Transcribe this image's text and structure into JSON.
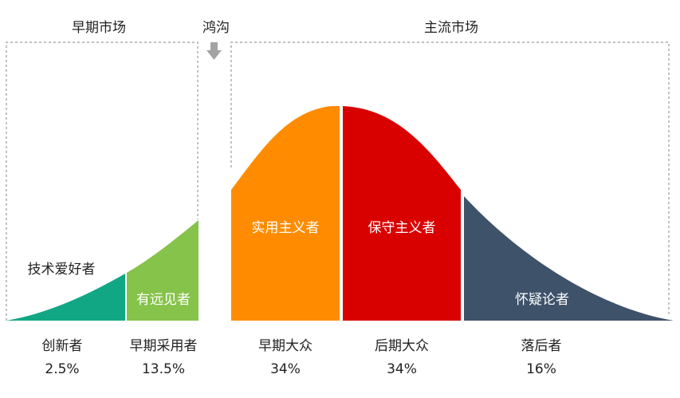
{
  "markets": {
    "early": "早期市场",
    "chasm": "鸿沟",
    "mainstream": "主流市场"
  },
  "segments": [
    {
      "label": "技术爱好者",
      "group": "创新者",
      "share": "2.5%",
      "color": "#12a784"
    },
    {
      "label": "有远见者",
      "group": "早期采用者",
      "share": "13.5%",
      "color": "#86c34a"
    },
    {
      "label": "实用主义者",
      "group": "早期大众",
      "share": "34%",
      "color": "#ff8c00"
    },
    {
      "label": "保守主义者",
      "group": "后期大众",
      "share": "34%",
      "color": "#d90000"
    },
    {
      "label": "怀疑论者",
      "group": "落后者",
      "share": "16%",
      "color": "#3e526a"
    }
  ],
  "colors": {
    "dashed_box": "#9a9a9a",
    "arrow": "#a3a3a3"
  },
  "icons": {
    "chasm_arrow": "arrow-down-icon"
  }
}
